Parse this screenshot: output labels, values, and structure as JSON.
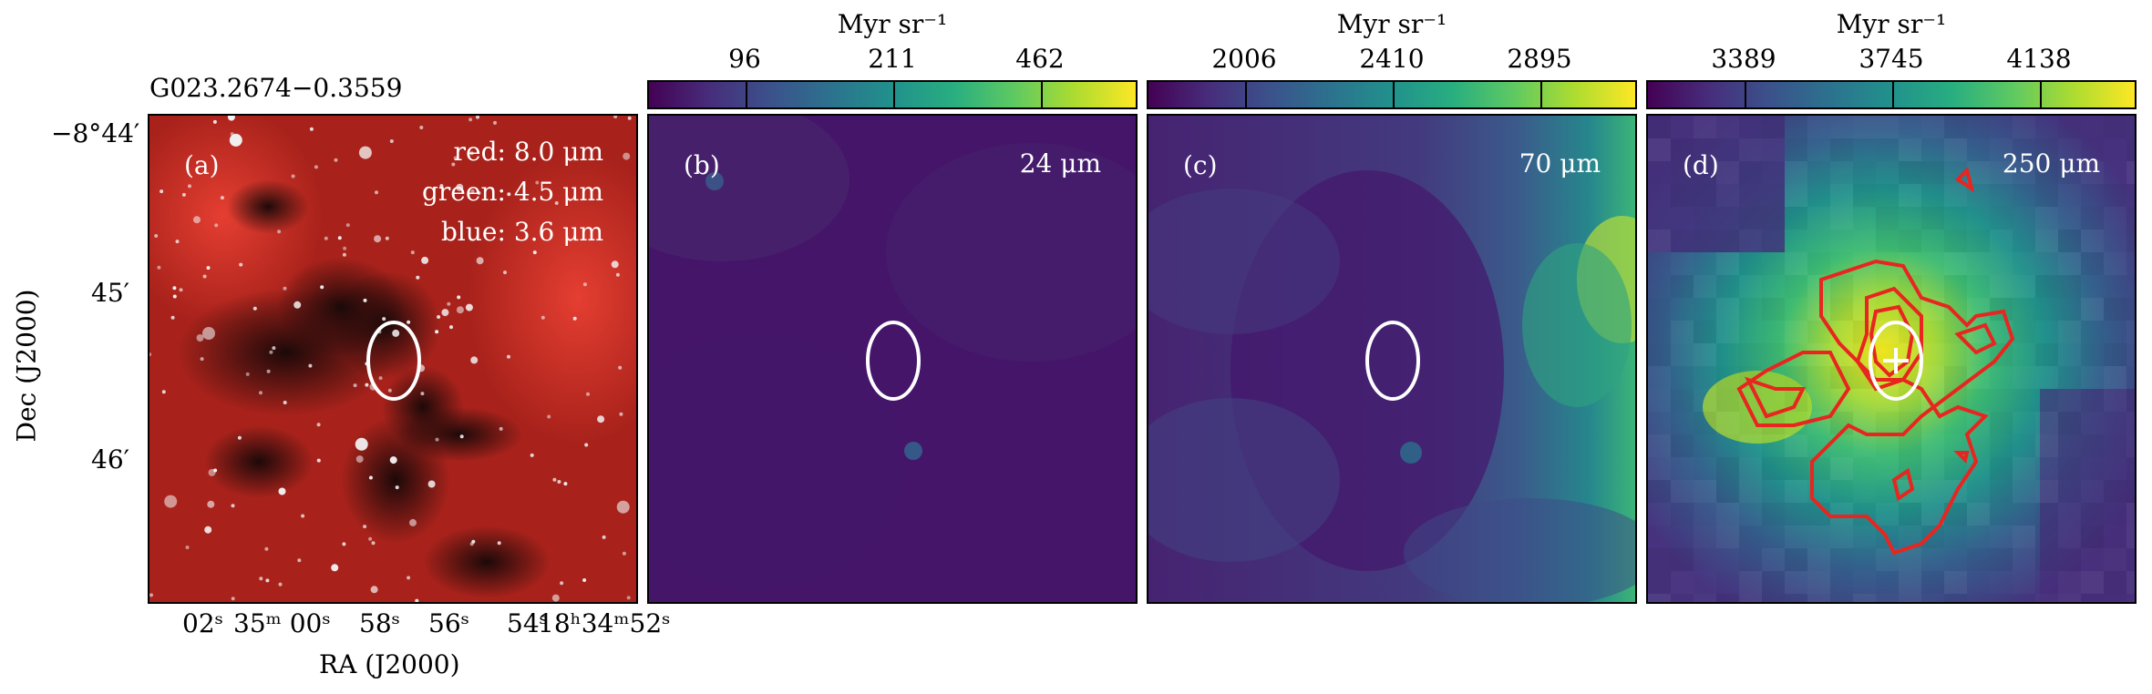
{
  "source_name": "G023.2674−0.3559",
  "colorbar_unit": "Myr sr⁻¹",
  "panels": [
    {
      "label": "(a)",
      "lines": [
        "red: 8.0 μm",
        "green: 4.5 μm",
        "blue: 3.6 μm"
      ]
    },
    {
      "label": "(b)",
      "wavelength": "24 μm",
      "ticks": [
        "96",
        "211",
        "462"
      ]
    },
    {
      "label": "(c)",
      "wavelength": "70 μm",
      "ticks": [
        "2006",
        "2410",
        "2895"
      ]
    },
    {
      "label": "(d)",
      "wavelength": "250 μm",
      "ticks": [
        "3389",
        "3745",
        "4138"
      ]
    }
  ],
  "axes": {
    "xlabel": "RA (J2000)",
    "ylabel": "Dec (J2000)",
    "yticks": [
      "−8°44′",
      "45′",
      "46′"
    ],
    "xticks": [
      "02ˢ",
      "35ᵐ 00ˢ",
      "58ˢ",
      "56ˢ",
      "54ˢ",
      "18ʰ34ᵐ52ˢ"
    ]
  },
  "colors": {
    "ellipse": "#ffffff",
    "contour": "#e8251f",
    "colormap": "viridis"
  }
}
